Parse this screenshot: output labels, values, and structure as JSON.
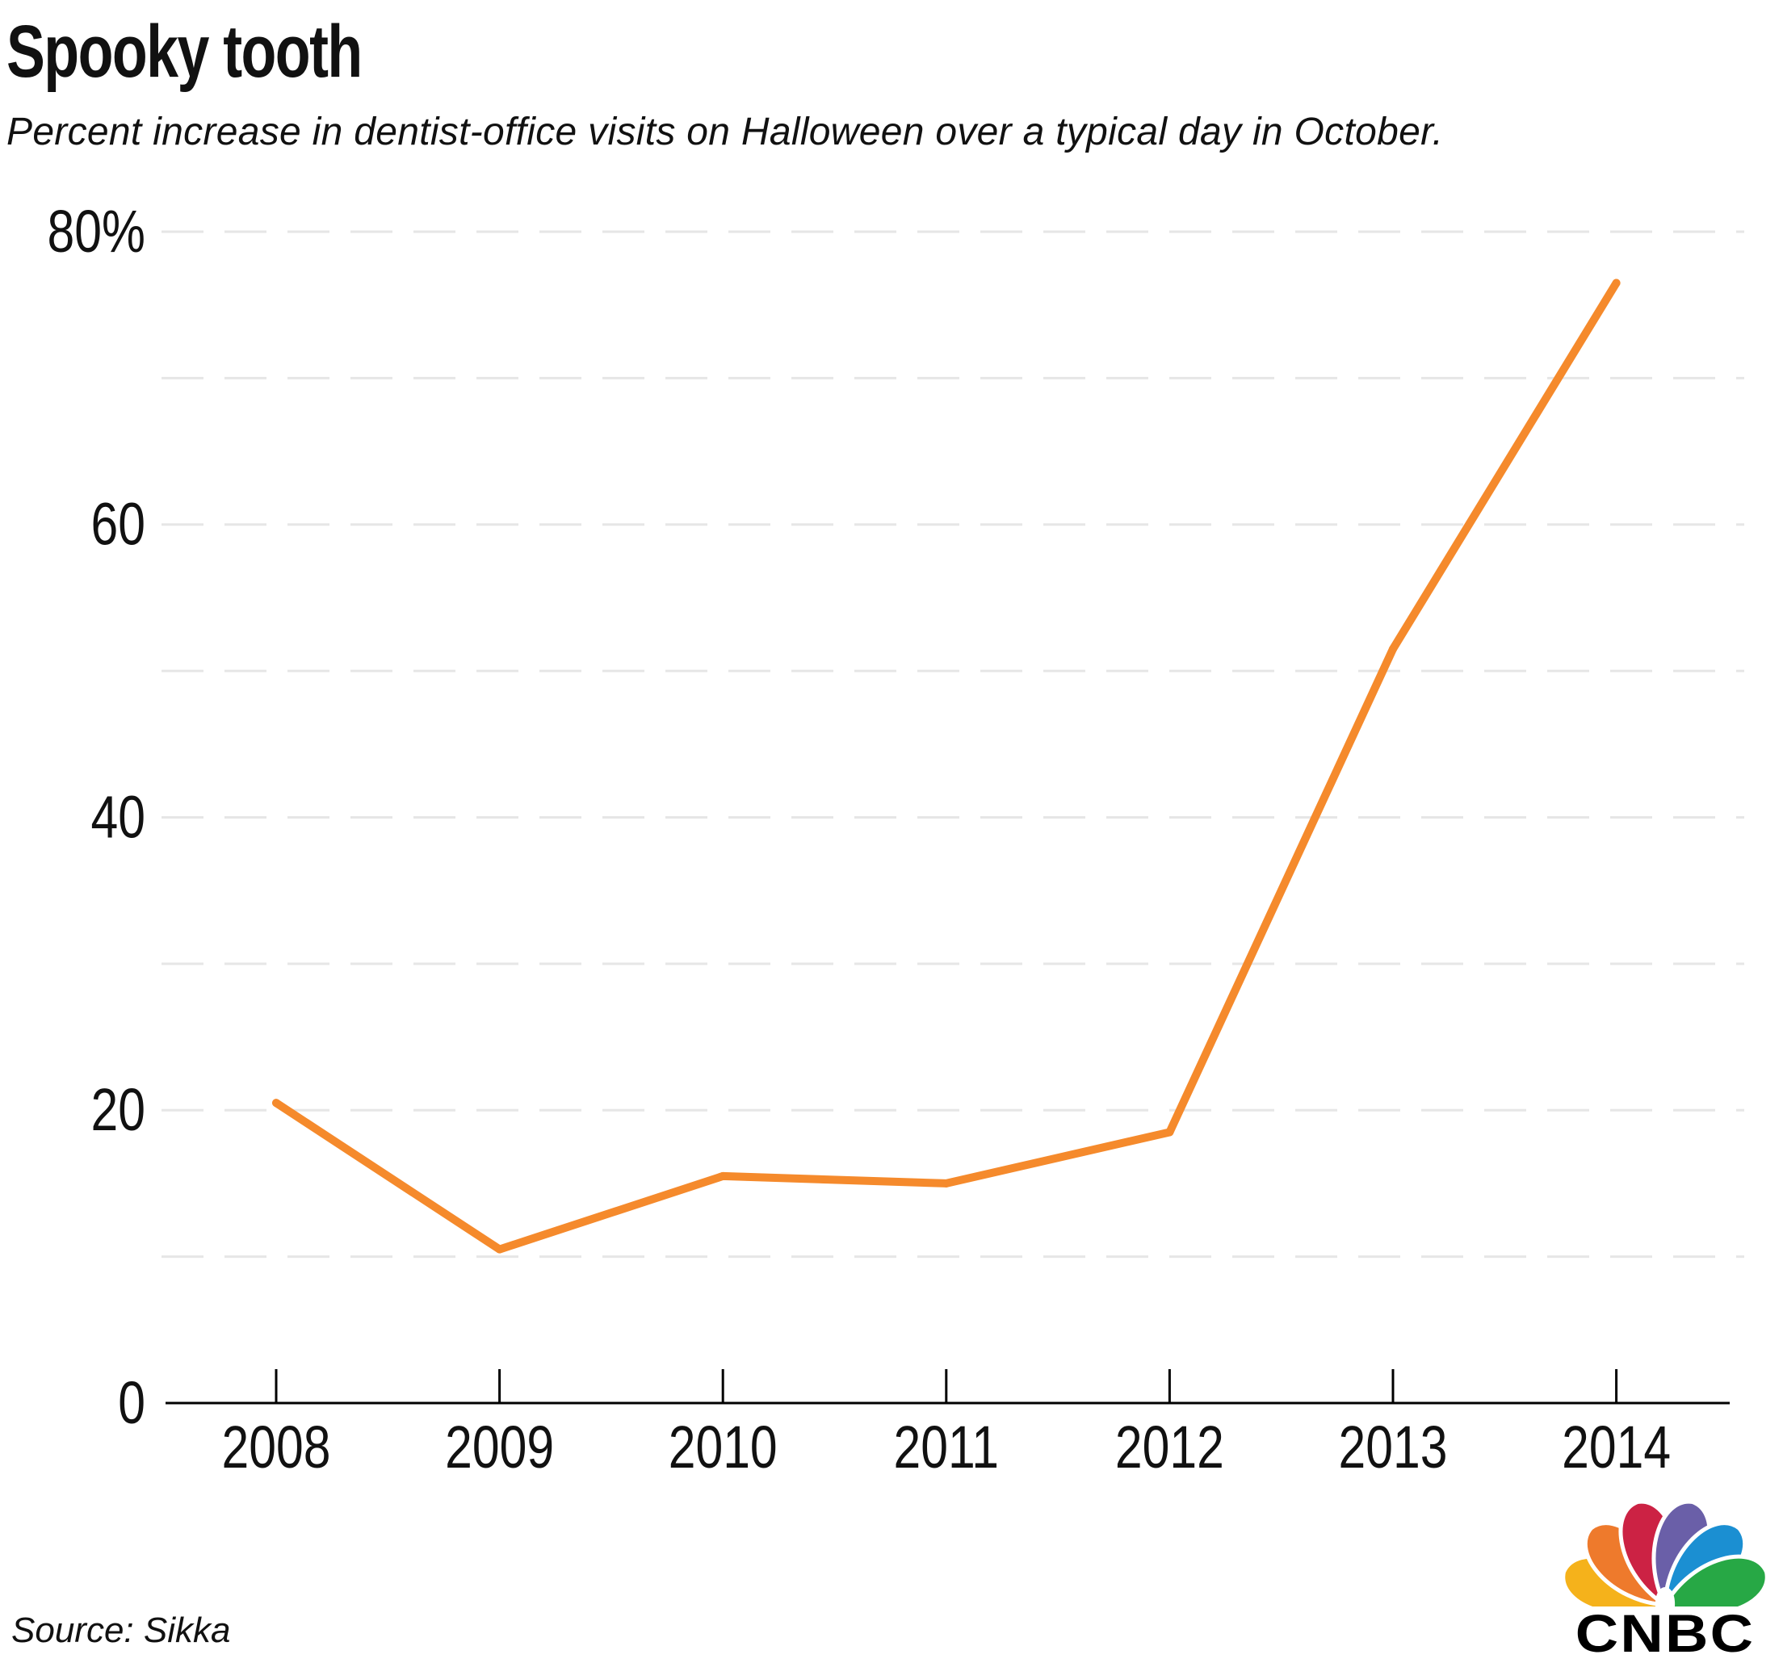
{
  "header": {
    "title": "Spooky tooth",
    "subtitle": "Percent increase in dentist-office visits on Halloween over a typical day in October."
  },
  "footer": {
    "source": "Source: Sikka"
  },
  "logo": {
    "wordmark": "CNBC",
    "icon": "nbc-peacock-icon",
    "feather_colors": [
      "#f5b21b",
      "#ee7a2c",
      "#cc2244",
      "#6a5fa8",
      "#1b8fd2",
      "#27a845"
    ]
  },
  "colors": {
    "line": "#f58a2c",
    "grid": "#e6e6e6",
    "axis": "#000000",
    "text": "#111111"
  },
  "chart_data": {
    "type": "line",
    "title": "Spooky tooth",
    "subtitle": "Percent increase in dentist-office visits on Halloween over a typical day in October.",
    "x": [
      "2008",
      "2009",
      "2010",
      "2011",
      "2012",
      "2013",
      "2014"
    ],
    "series": [
      {
        "name": "Percent increase in dentist-office visits",
        "values": [
          20.5,
          10.5,
          15.5,
          15,
          18.5,
          51.5,
          76.5
        ]
      }
    ],
    "xlabel": "",
    "ylabel": "",
    "ylim": [
      0,
      80
    ],
    "yticks": [
      0,
      20,
      40,
      60,
      80
    ],
    "ytick_labels": [
      "0",
      "20",
      "40",
      "60",
      "80%"
    ],
    "minor_gridlines": [
      10,
      30,
      50,
      70
    ],
    "grid": true,
    "grid_style": "dashed",
    "source": "Source: Sikka"
  }
}
